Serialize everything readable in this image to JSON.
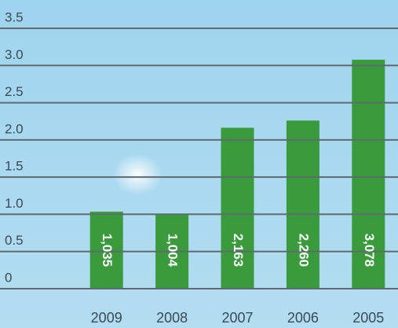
{
  "chart_data": {
    "type": "bar",
    "categories": [
      "2009",
      "2008",
      "2007",
      "2006",
      "2005"
    ],
    "values": [
      1.035,
      1.004,
      2.163,
      2.26,
      3.078
    ],
    "value_labels": [
      "1,035",
      "1,004",
      "2,163",
      "2,260",
      "3,078"
    ],
    "color": "#3a9b3c",
    "ylim": [
      0,
      3.5
    ],
    "yticks": [
      0,
      0.5,
      {
        "value": 1,
        "label": "1.0"
      },
      1.5,
      {
        "value": 2,
        "label": "2.0"
      },
      2.5,
      {
        "value": 3,
        "label": "3.0"
      },
      3.5
    ],
    "grid": true
  }
}
